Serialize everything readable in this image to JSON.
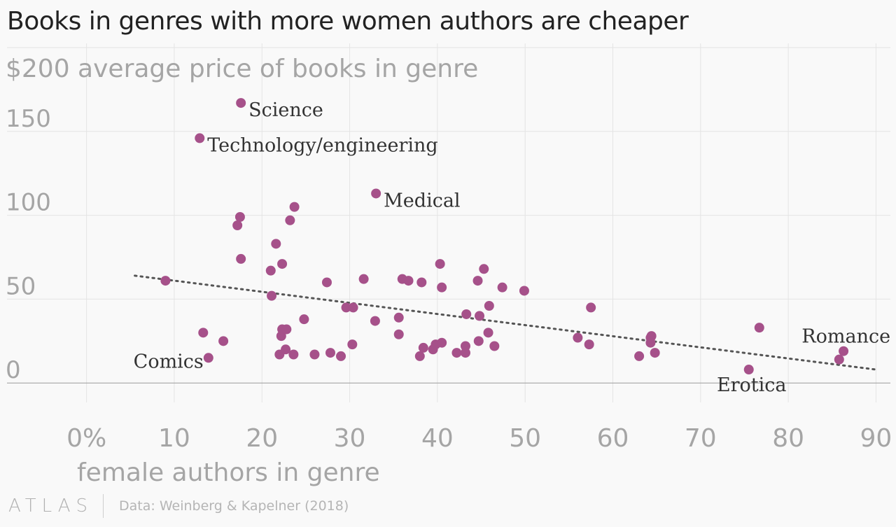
{
  "title": "Books in genres with more women authors are cheaper",
  "colors": {
    "point": "#a6518a",
    "trend": "#555555",
    "grid": "#e4e4e4",
    "tick": "#a5a5a5",
    "annotation": "#333333"
  },
  "chart_data": {
    "type": "scatter",
    "title": "Books in genres with more women authors are cheaper",
    "ylabel": "$200 average price of books in genre",
    "xlabel": "female authors in genre",
    "xlim": [
      -4,
      92
    ],
    "ylim": [
      -7,
      200
    ],
    "x_ticks": [
      0,
      10,
      20,
      30,
      40,
      50,
      60,
      70,
      80,
      90
    ],
    "x_tick_labels": [
      "0%",
      "10",
      "20",
      "30",
      "40",
      "50",
      "60",
      "70",
      "80",
      "90"
    ],
    "y_ticks": [
      0,
      50,
      100,
      150
    ],
    "y_tick_labels": [
      "0",
      "50",
      "100",
      "150"
    ],
    "grid": true,
    "trendline": {
      "x": [
        5.5,
        90
      ],
      "y": [
        64,
        8
      ]
    },
    "annotations": [
      {
        "label": "Science",
        "x": 17.6,
        "y": 167,
        "pos": "right-below"
      },
      {
        "label": "Technology/engineering",
        "x": 12.9,
        "y": 146,
        "pos": "right-below"
      },
      {
        "label": "Medical",
        "x": 33.0,
        "y": 113,
        "pos": "right-below"
      },
      {
        "label": "Comics",
        "x": 13.9,
        "y": 15,
        "pos": "left"
      },
      {
        "label": "Romance",
        "x": 86.3,
        "y": 19,
        "pos": "above-left"
      },
      {
        "label": "Erotica",
        "x": 75.5,
        "y": 8,
        "pos": "below"
      }
    ],
    "points": [
      [
        17.6,
        167
      ],
      [
        12.9,
        146
      ],
      [
        33.0,
        113
      ],
      [
        9.0,
        61
      ],
      [
        13.3,
        30
      ],
      [
        13.9,
        15
      ],
      [
        15.6,
        25
      ],
      [
        17.2,
        94
      ],
      [
        17.5,
        99
      ],
      [
        17.6,
        74
      ],
      [
        21.0,
        67
      ],
      [
        21.1,
        52
      ],
      [
        21.6,
        83
      ],
      [
        22.3,
        71
      ],
      [
        22.0,
        17
      ],
      [
        22.2,
        28
      ],
      [
        22.3,
        32
      ],
      [
        22.8,
        32
      ],
      [
        22.7,
        20
      ],
      [
        23.2,
        97
      ],
      [
        23.7,
        105
      ],
      [
        23.6,
        17
      ],
      [
        24.8,
        38
      ],
      [
        26.0,
        17
      ],
      [
        27.4,
        60
      ],
      [
        27.8,
        18
      ],
      [
        29.0,
        16
      ],
      [
        29.6,
        45
      ],
      [
        30.4,
        45
      ],
      [
        30.3,
        23
      ],
      [
        31.6,
        62
      ],
      [
        32.9,
        37
      ],
      [
        35.6,
        39
      ],
      [
        35.6,
        29
      ],
      [
        36.0,
        62
      ],
      [
        36.7,
        61
      ],
      [
        38.2,
        60
      ],
      [
        38.0,
        16
      ],
      [
        38.4,
        21
      ],
      [
        39.5,
        20
      ],
      [
        39.8,
        23
      ],
      [
        40.3,
        71
      ],
      [
        40.5,
        57
      ],
      [
        40.5,
        24
      ],
      [
        42.2,
        18
      ],
      [
        43.2,
        22
      ],
      [
        43.2,
        18
      ],
      [
        43.3,
        41
      ],
      [
        44.6,
        61
      ],
      [
        44.7,
        25
      ],
      [
        44.8,
        40
      ],
      [
        45.3,
        68
      ],
      [
        45.8,
        30
      ],
      [
        45.9,
        46
      ],
      [
        46.5,
        22
      ],
      [
        47.4,
        57
      ],
      [
        49.9,
        55
      ],
      [
        56.0,
        27
      ],
      [
        57.3,
        23
      ],
      [
        57.5,
        45
      ],
      [
        63.0,
        16
      ],
      [
        64.3,
        27
      ],
      [
        64.4,
        28
      ],
      [
        64.3,
        24
      ],
      [
        64.8,
        18
      ],
      [
        75.5,
        8
      ],
      [
        76.7,
        33
      ],
      [
        85.8,
        14
      ],
      [
        86.3,
        19
      ]
    ]
  },
  "footer": {
    "logo": "ATLAS",
    "source": "Data: Weinberg & Kapelner (2018)"
  }
}
